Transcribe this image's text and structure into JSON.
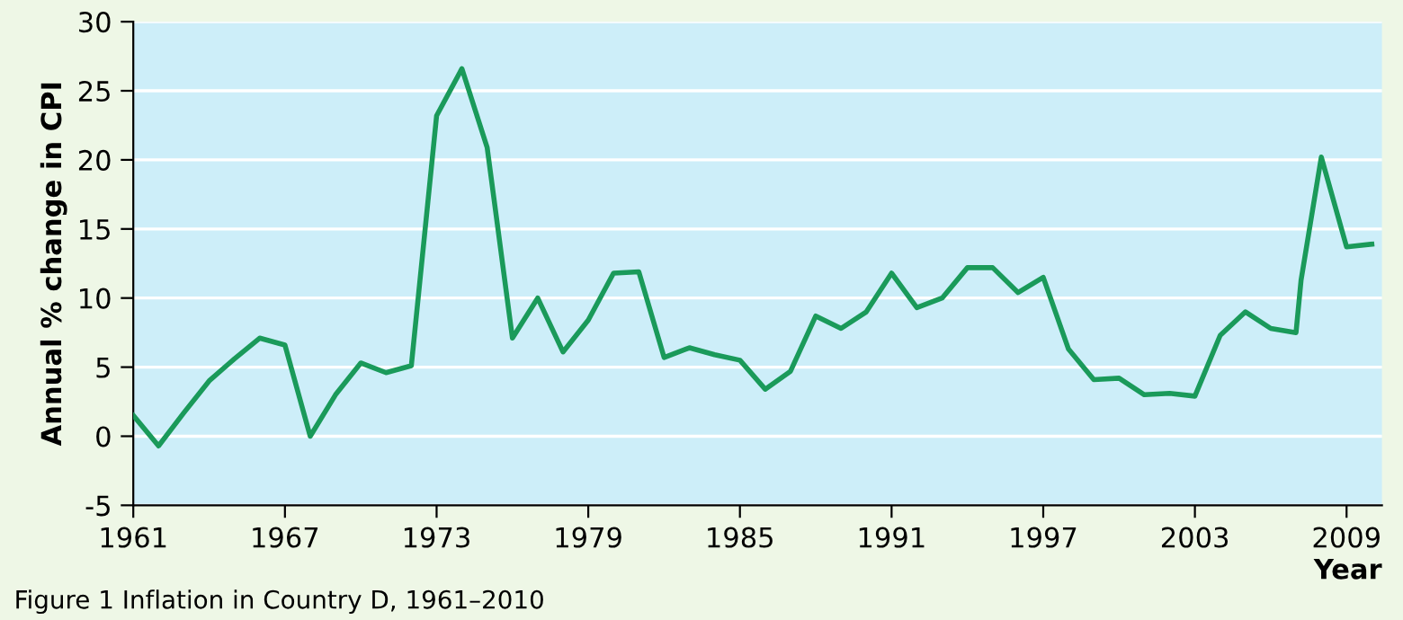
{
  "chart_data": {
    "type": "line",
    "xlabel": "Year",
    "ylabel": "Annual % change in CPI",
    "annotations": [
      "Figure 1 Inflation in Country D, 1961–2010"
    ],
    "series": [
      {
        "color": "#1a9a5a",
        "x": [
          1961,
          1962,
          1963,
          1964,
          1965,
          1966,
          1967,
          1968,
          1969,
          1970,
          1971,
          1972,
          1973,
          1974,
          1975,
          1976,
          1977,
          1978,
          1979,
          1980,
          1981,
          1982,
          1983,
          1984,
          1985,
          1986,
          1987,
          1988,
          1989,
          1990,
          1991,
          1992,
          1993,
          1994,
          1995,
          1996,
          1997,
          1998,
          1999,
          2000,
          2001,
          2002,
          2003,
          2004,
          2005,
          2006,
          2007,
          2007.2,
          2008,
          2009,
          2010
        ],
        "values": [
          1.5,
          -0.7,
          1.7,
          4.0,
          5.6,
          7.1,
          6.6,
          0,
          3.0,
          5.3,
          4.6,
          5.1,
          23.2,
          26.6,
          20.9,
          7.1,
          10.0,
          6.1,
          8.4,
          11.8,
          11.9,
          5.7,
          6.4,
          5.9,
          5.5,
          3.4,
          4.7,
          8.7,
          7.8,
          9.0,
          11.8,
          9.3,
          10.0,
          12.2,
          12.2,
          10.4,
          11.5,
          6.3,
          4.1,
          4.2,
          3.0,
          3.1,
          2.9,
          7.3,
          9.0,
          7.8,
          7.5,
          11.3,
          20.2,
          13.7,
          13.9
        ]
      }
    ],
    "xlim": [
      1961,
      2010.4
    ],
    "xticks": [
      1961,
      1967,
      1973,
      1979,
      1985,
      1991,
      1997,
      2003,
      2009
    ],
    "ylim": [
      -5,
      30
    ],
    "yticks": [
      -5,
      0,
      5,
      10,
      15,
      20,
      25,
      30
    ],
    "grid": "y",
    "marker": "none",
    "line_style": "solid",
    "legend": false
  }
}
